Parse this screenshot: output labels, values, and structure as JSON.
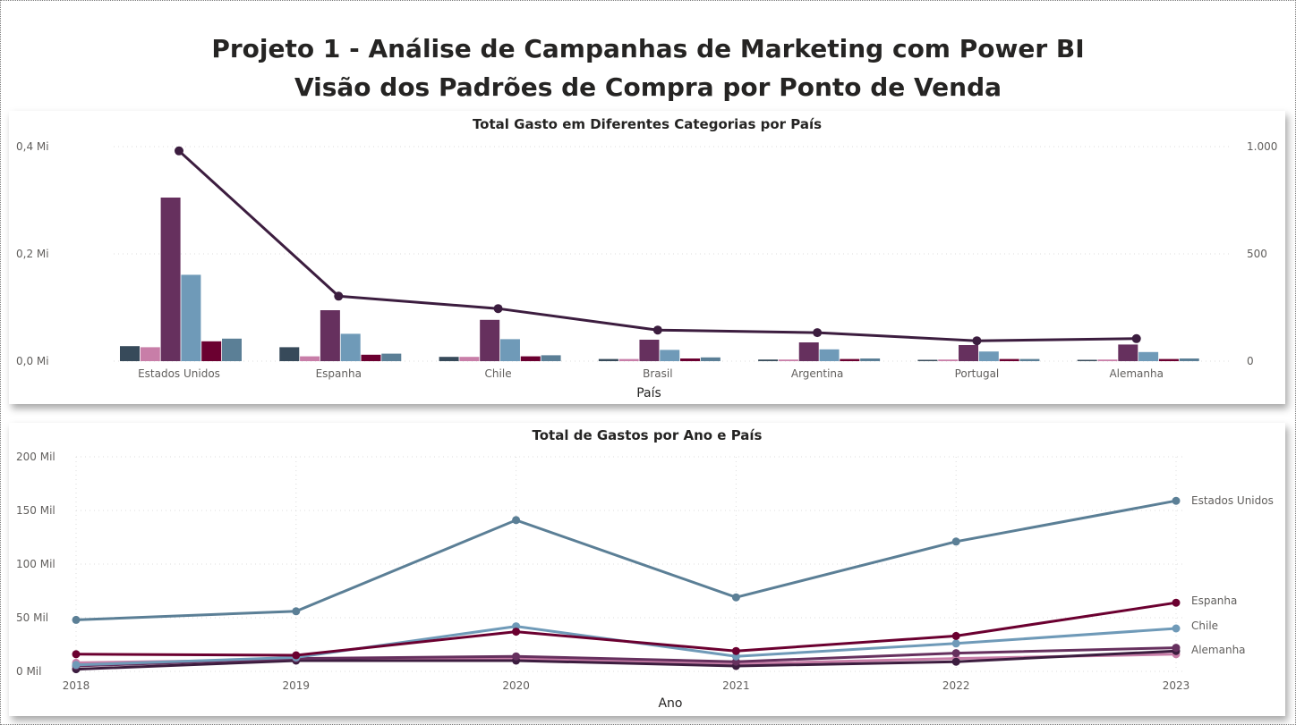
{
  "header": {
    "title_line1": "Projeto 1 - Análise de Campanhas de Marketing com Power BI",
    "title_line2": "Visão dos Padrões de Compra por Ponto de Venda"
  },
  "chart_data": [
    {
      "type": "bar",
      "title": "Total Gasto em Diferentes Categorias por País",
      "xlabel": "País",
      "ylabel": "",
      "categories": [
        "Estados Unidos",
        "Espanha",
        "Chile",
        "Brasil",
        "Argentina",
        "Portugal",
        "Alemanha"
      ],
      "ylim": [
        0,
        400000
      ],
      "y_ticks": [
        {
          "value": 0,
          "label": "0,0 Mi"
        },
        {
          "value": 200000,
          "label": "0,2 Mi"
        },
        {
          "value": 400000,
          "label": "0,4 Mi"
        }
      ],
      "y2lim": [
        0,
        1000
      ],
      "y2_ticks": [
        {
          "value": 0,
          "label": "0"
        },
        {
          "value": 500,
          "label": "500"
        },
        {
          "value": 1000,
          "label": "1.000"
        }
      ],
      "grid": true,
      "series_colors": [
        "#374a5a",
        "#c87ea8",
        "#66305e",
        "#6f9ab8",
        "#6b0030",
        "#5b7f96"
      ],
      "series": [
        {
          "values": [
            28000,
            26000,
            8000,
            4000,
            3000,
            2500,
            2500
          ]
        },
        {
          "values": [
            26000,
            9000,
            8000,
            4000,
            3000,
            3000,
            3000
          ]
        },
        {
          "values": [
            305000,
            95000,
            77000,
            40000,
            35000,
            30000,
            31000
          ]
        },
        {
          "values": [
            161000,
            51000,
            41000,
            21000,
            22000,
            18000,
            17000
          ]
        },
        {
          "values": [
            37000,
            12000,
            9000,
            5000,
            4000,
            4000,
            4000
          ]
        },
        {
          "values": [
            42000,
            14000,
            11000,
            7000,
            5000,
            4000,
            5000
          ]
        }
      ],
      "line": {
        "color": "#3c1d3f",
        "axis": "secondary",
        "values": [
          980,
          303,
          245,
          145,
          133,
          95,
          105
        ]
      }
    },
    {
      "type": "line",
      "title": "Total de Gastos por Ano e País",
      "xlabel": "Ano",
      "ylabel": "",
      "x": [
        "2018",
        "2019",
        "2020",
        "2021",
        "2022",
        "2023"
      ],
      "ylim": [
        0,
        200000
      ],
      "y_ticks": [
        {
          "value": 0,
          "label": "0 Mil"
        },
        {
          "value": 50000,
          "label": "50 Mil"
        },
        {
          "value": 100000,
          "label": "100 Mil"
        },
        {
          "value": 150000,
          "label": "150 Mil"
        },
        {
          "value": 200000,
          "label": "200 Mil"
        }
      ],
      "grid": true,
      "series": [
        {
          "name": "Estados Unidos",
          "color": "#5b7f96",
          "values": [
            48000,
            56000,
            141000,
            69000,
            121000,
            159000
          ]
        },
        {
          "name": "Espanha",
          "color": "#6b0030",
          "values": [
            16000,
            15000,
            37000,
            19000,
            33000,
            64000
          ]
        },
        {
          "name": "Chile",
          "color": "#6f9ab8",
          "values": [
            6000,
            13000,
            42000,
            14000,
            26000,
            40000
          ]
        },
        {
          "name": "Alemanha",
          "color": "#66305e",
          "values": [
            5000,
            12000,
            14000,
            9000,
            17000,
            22000
          ]
        },
        {
          "name": "",
          "color": "#c87ea8",
          "values": [
            8000,
            11000,
            12000,
            7000,
            12000,
            16000
          ]
        },
        {
          "name": "",
          "color": "#3c1d3f",
          "values": [
            2000,
            10000,
            10000,
            5000,
            9000,
            19000
          ]
        }
      ]
    }
  ]
}
